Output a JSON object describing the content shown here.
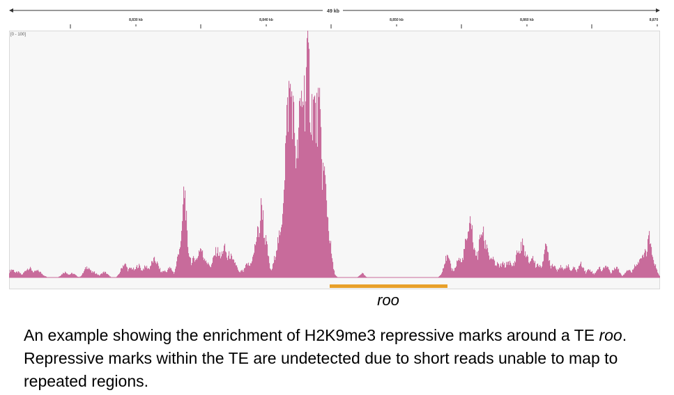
{
  "ruler": {
    "span_label": "49 kb",
    "ticks": [
      "8,830 kb",
      "8,840 kb",
      "8,850 kb",
      "8,860 kb",
      "8,870"
    ]
  },
  "track": {
    "range_label": "[0 - 100]",
    "color": "#c86b9b",
    "baseline_color": "#c86b9b"
  },
  "annotation": {
    "te_name": "roo",
    "te_color": "#e8a02a"
  },
  "caption": {
    "part1": "An example showing the enrichment of H2K9me3 repressive marks around a TE ",
    "te": "roo",
    "part2": ". Repressive marks within the TE are undetected due to short reads unable to map to repeated regions."
  }
}
